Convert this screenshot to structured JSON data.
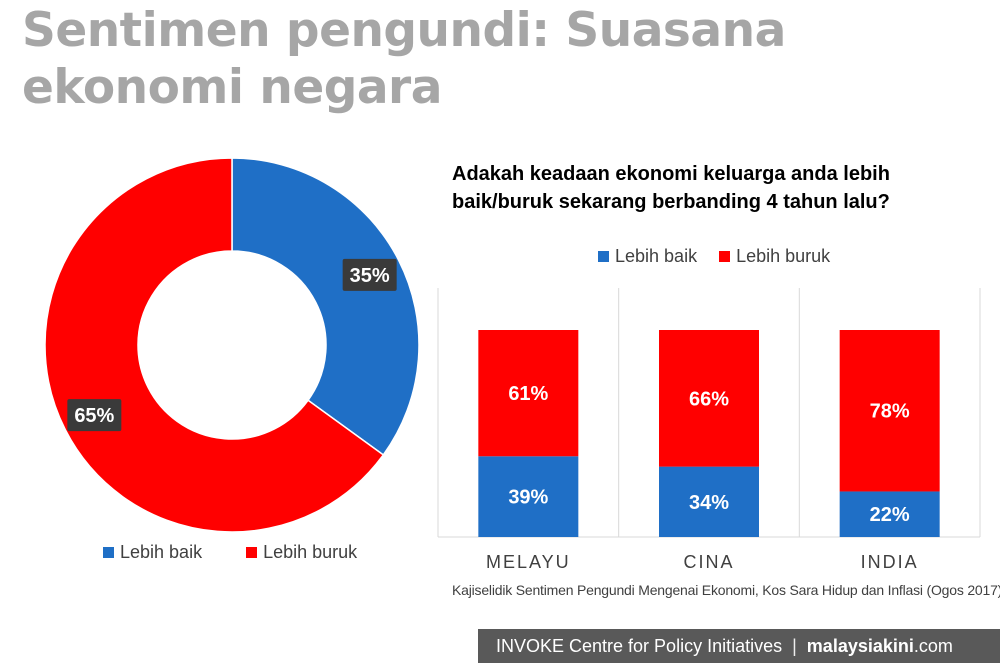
{
  "title": {
    "line1": "Sentimen pengundi: Suasana",
    "line2": "ekonomi negara"
  },
  "chart_data": [
    {
      "type": "pie",
      "labels": [
        "Lebih baik",
        "Lebih buruk"
      ],
      "values": [
        35,
        65
      ],
      "value_labels": [
        "35%",
        "65%"
      ],
      "colors": [
        "#1f6fc6",
        "#ff0000"
      ],
      "donut": true,
      "legend": "bottom"
    },
    {
      "type": "bar",
      "stacked": true,
      "percent": true,
      "title": "Adakah  keadaan ekonomi keluarga anda lebih\nbaik/buruk sekarang berbanding 4 tahun lalu?",
      "categories": [
        "MELAYU",
        "CINA",
        "INDIA"
      ],
      "series": [
        {
          "name": "Lebih baik",
          "values": [
            39,
            34,
            22
          ],
          "labels": [
            "39%",
            "34%",
            "22%"
          ],
          "color": "#1f6fc6"
        },
        {
          "name": "Lebih buruk",
          "values": [
            61,
            66,
            78
          ],
          "labels": [
            "61%",
            "66%",
            "78%"
          ],
          "color": "#ff0000"
        }
      ],
      "ylim": [
        0,
        100
      ],
      "grid": "vertical",
      "legend": "top"
    }
  ],
  "source": "Kajiselidik Sentimen Pengundi Mengenai Ekonomi, Kos Sara Hidup dan Inflasi (Ogos 2017)",
  "footer": {
    "org": "INVOKE Centre for Policy Initiatives",
    "separator": "|",
    "brand": "malaysiakini",
    "brand_suffix": ".com"
  }
}
